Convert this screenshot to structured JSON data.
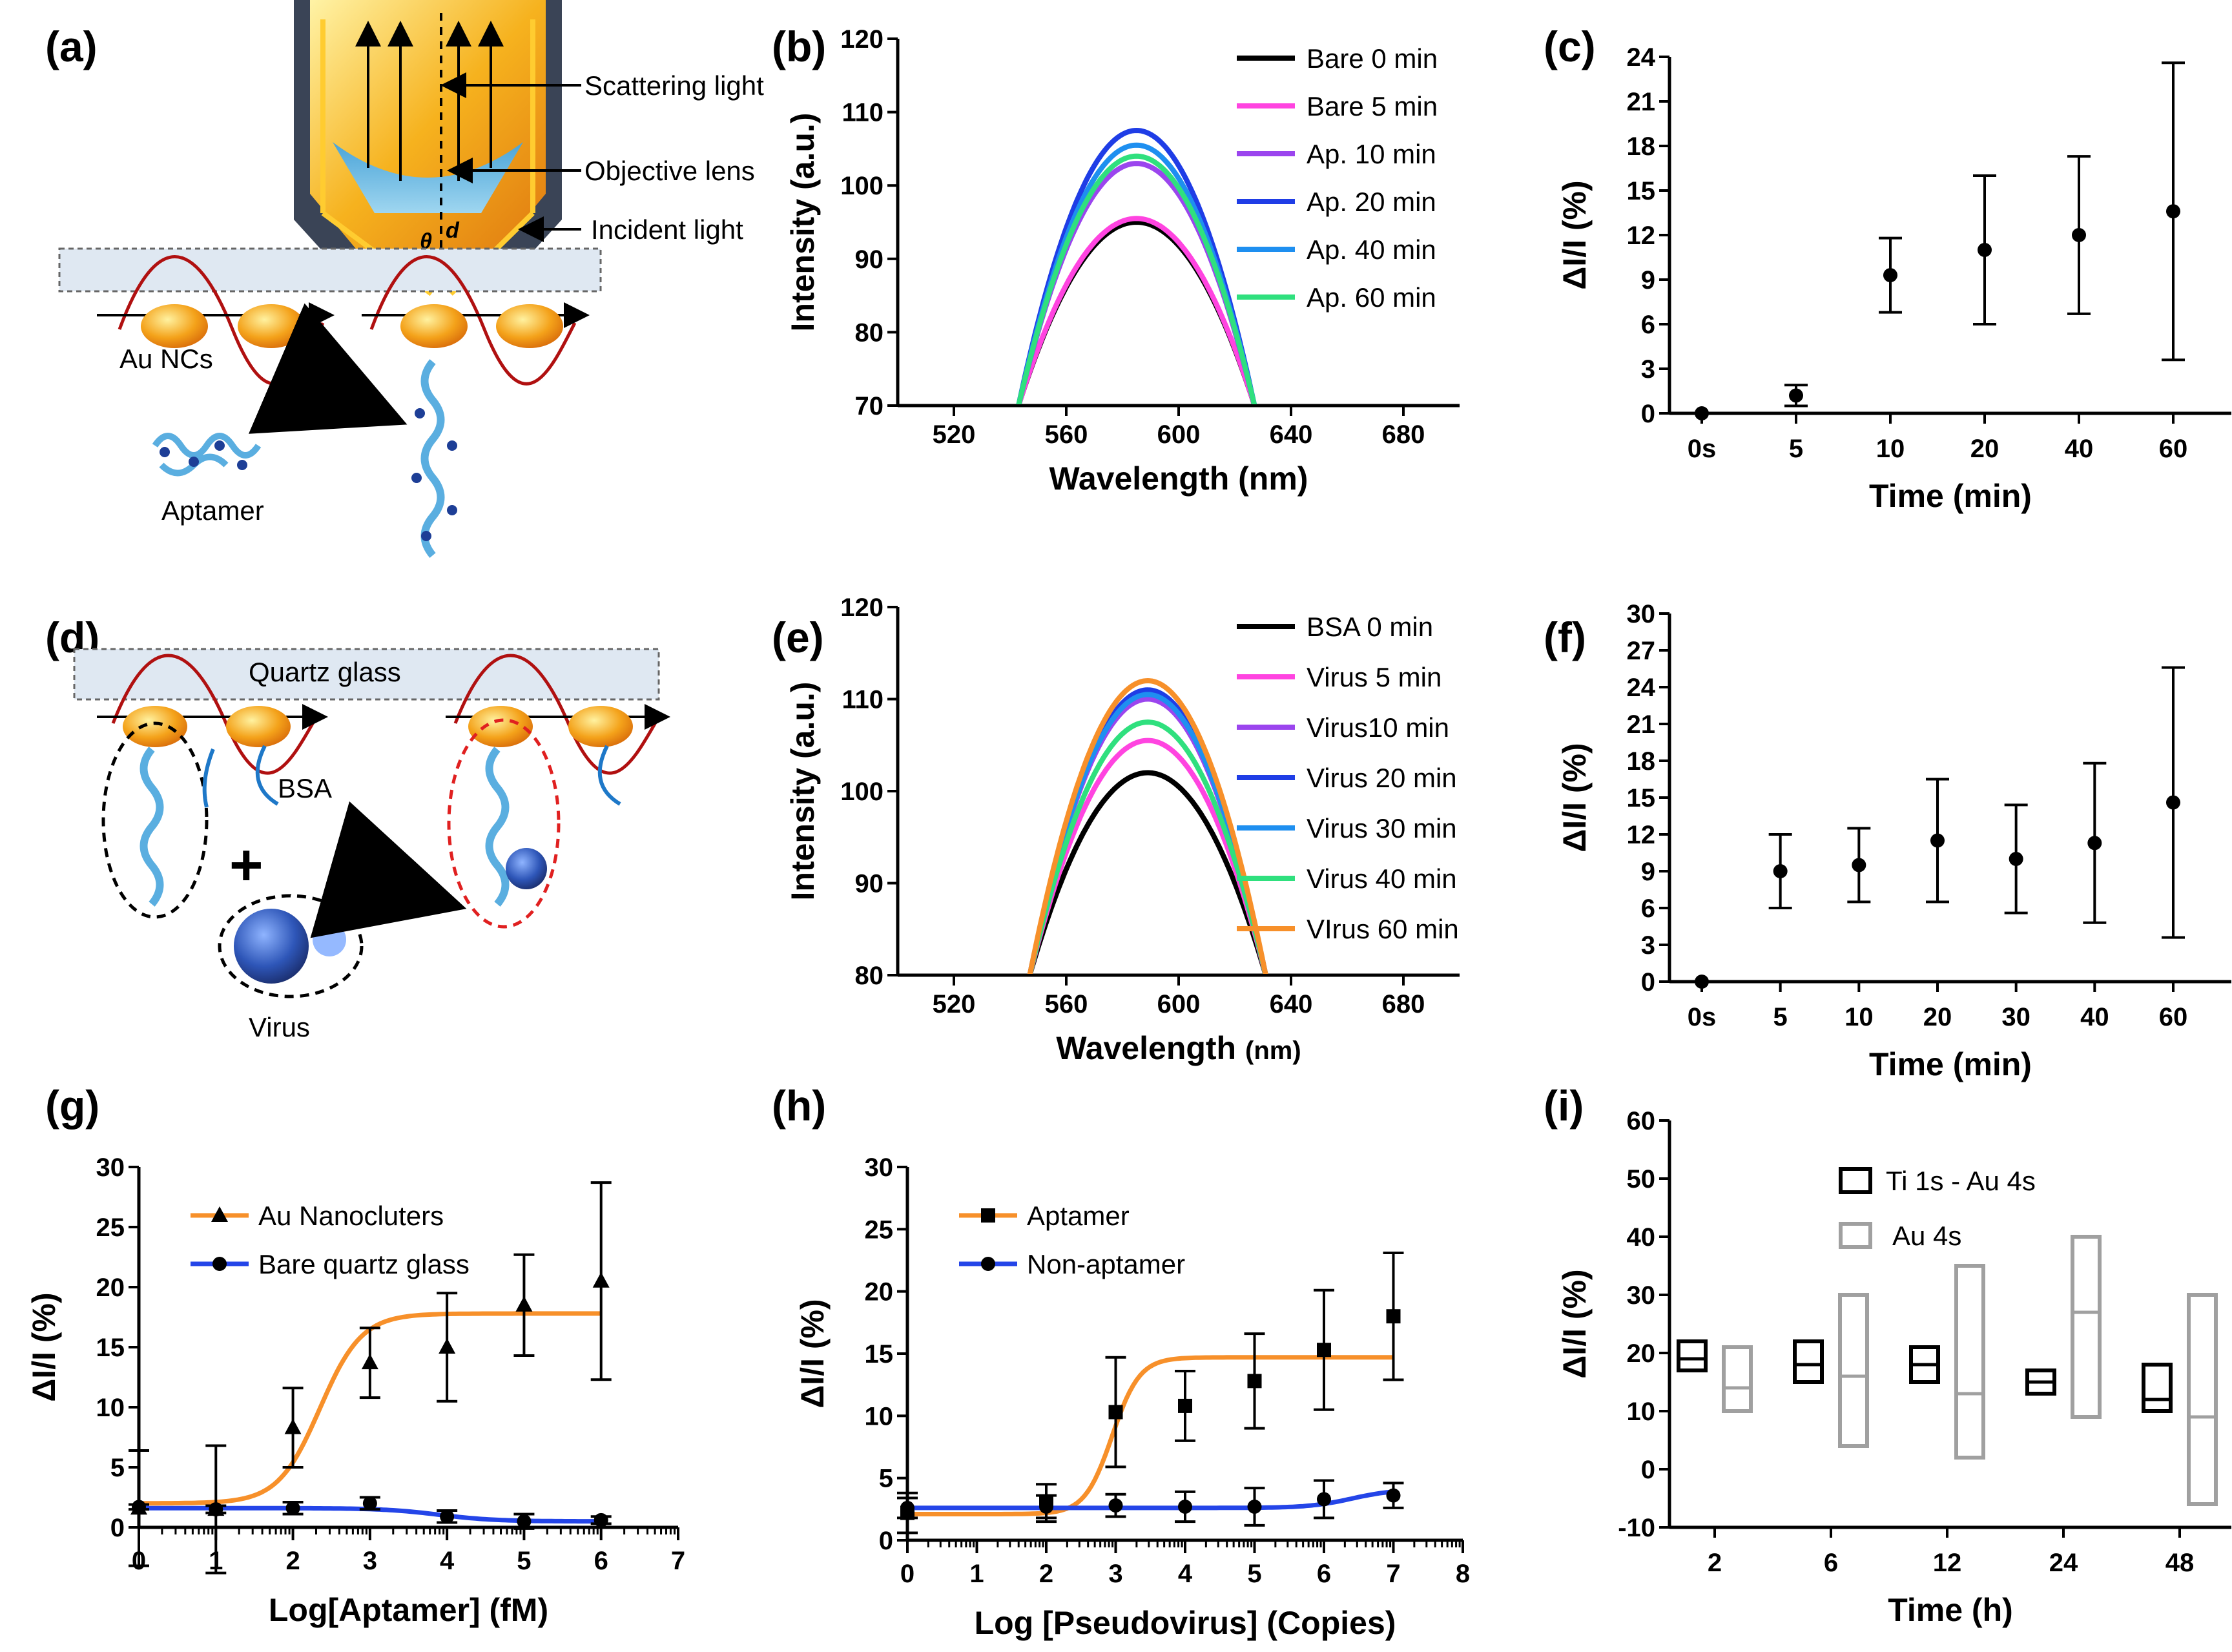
{
  "colors": {
    "black": "#000000",
    "magenta": "#ff44e0",
    "purple": "#9b45ee",
    "blue": "#1f3de6",
    "sky": "#1e8ff0",
    "green": "#2fe07e",
    "orange": "#f7902a",
    "lineblue": "#2445e8",
    "gray": "#a0a0a0",
    "red": "#e02020"
  },
  "schematics": {
    "a": {
      "label": "(a)",
      "annotations": [
        "Scattering light",
        "Objective lens",
        "Incident light",
        "Au NCs",
        "Aptamer"
      ],
      "symbols": [
        "θ",
        "d"
      ]
    },
    "d": {
      "label": "(d)",
      "annotations": [
        "Quartz glass",
        "BSA",
        "Virus",
        "+"
      ]
    }
  },
  "chart_data": [
    {
      "id": "b",
      "panel_label": "(b)",
      "type": "line",
      "xlabel": "Wavelength (nm)",
      "ylabel": "Intensity (a.u.)",
      "xlim": [
        500,
        700
      ],
      "ylim": [
        70,
        120
      ],
      "xticks": [
        520,
        560,
        600,
        640,
        680
      ],
      "yticks": [
        70,
        80,
        90,
        100,
        110,
        120
      ],
      "peak_x": 585,
      "half_width": 42,
      "series": [
        {
          "name": "Bare 0 min",
          "peak": 95,
          "color": "black"
        },
        {
          "name": "Bare 5 min",
          "peak": 95.5,
          "color": "magenta"
        },
        {
          "name": "Ap.  10 min",
          "peak": 103,
          "color": "purple"
        },
        {
          "name": "Ap.  20 min",
          "peak": 107.5,
          "color": "blue"
        },
        {
          "name": "Ap.  40 min",
          "peak": 105.5,
          "color": "sky"
        },
        {
          "name": "Ap.  60 min",
          "peak": 104,
          "color": "green"
        }
      ]
    },
    {
      "id": "c",
      "panel_label": "(c)",
      "type": "scatter",
      "xlabel": "Time  (min)",
      "ylabel": "ΔI/I (%)",
      "ylim": [
        0,
        24
      ],
      "yticks": [
        0,
        3,
        6,
        9,
        12,
        15,
        18,
        21,
        24
      ],
      "categories": [
        "0s",
        "5",
        "10",
        "20",
        "40",
        "60"
      ],
      "values": [
        0,
        1.2,
        9.3,
        11.0,
        12.0,
        13.6
      ],
      "errors": [
        0,
        0.7,
        2.5,
        5.0,
        5.3,
        10.0
      ]
    },
    {
      "id": "e",
      "panel_label": "(e)",
      "type": "line",
      "xlabel": "Wavelength (nm)",
      "xlabel_main": "Wavelength",
      "xlabel_unit": "(nm)",
      "ylabel": "Intensity (a.u.)",
      "xlim": [
        500,
        700
      ],
      "ylim": [
        80,
        120
      ],
      "xticks": [
        520,
        560,
        600,
        640,
        680
      ],
      "yticks": [
        80,
        90,
        100,
        110,
        120
      ],
      "peak_x": 589,
      "half_width": 42,
      "series": [
        {
          "name": "BSA 0 min",
          "peak": 102,
          "color": "black"
        },
        {
          "name": "Virus 5 min",
          "peak": 105.5,
          "color": "magenta"
        },
        {
          "name": "Virus10 min",
          "peak": 110,
          "color": "purple"
        },
        {
          "name": "Virus 20 min",
          "peak": 111,
          "color": "blue"
        },
        {
          "name": "Virus 30 min",
          "peak": 110.5,
          "color": "sky"
        },
        {
          "name": "Virus 40 min",
          "peak": 107.5,
          "color": "green"
        },
        {
          "name": "VIrus 60 min",
          "peak": 112,
          "color": "orange"
        }
      ]
    },
    {
      "id": "f",
      "panel_label": "(f)",
      "type": "scatter",
      "xlabel": "Time (min)",
      "ylabel": "ΔI/I (%)",
      "ylim": [
        0,
        30
      ],
      "yticks": [
        0,
        3,
        6,
        9,
        12,
        15,
        18,
        21,
        24,
        27,
        30
      ],
      "categories": [
        "0s",
        "5",
        "10",
        "20",
        "30",
        "40",
        "60"
      ],
      "values": [
        0,
        9.0,
        9.5,
        11.5,
        10.0,
        11.3,
        14.6
      ],
      "errors": [
        0,
        3.0,
        3.0,
        5.0,
        4.4,
        6.5,
        11.0
      ]
    },
    {
      "id": "g",
      "panel_label": "(g)",
      "type": "scatter",
      "xlabel": "Log[Aptamer] (fM)",
      "ylabel": "ΔI/I (%)",
      "xlim": [
        0,
        7
      ],
      "ylim": [
        0,
        30
      ],
      "xticks": [
        0,
        1,
        2,
        3,
        4,
        5,
        6,
        7
      ],
      "yticks": [
        0,
        5,
        10,
        15,
        20,
        25,
        30
      ],
      "series": [
        {
          "name": "Au Nanocluters",
          "color": "orange",
          "marker": "triangle",
          "x": [
            0,
            1,
            2,
            3,
            4,
            5,
            6
          ],
          "y": [
            1.6,
            1.5,
            8.3,
            13.7,
            15.0,
            18.5,
            20.5
          ],
          "err": [
            4.8,
            5.3,
            3.3,
            2.9,
            4.5,
            4.2,
            8.2
          ],
          "fit": {
            "bottom": 2.0,
            "top": 17.8,
            "x50": 2.35,
            "slope": 1.6
          }
        },
        {
          "name": "Bare quartz glass",
          "color": "lineblue",
          "marker": "circle",
          "x": [
            0,
            1,
            2,
            3,
            4,
            5,
            6
          ],
          "y": [
            1.7,
            1.5,
            1.6,
            2.0,
            0.9,
            0.5,
            0.6
          ],
          "err": [
            0.2,
            0.3,
            0.5,
            0.5,
            0.5,
            0.6,
            0.3
          ],
          "fit": {
            "bottom": 1.6,
            "top": 0.5,
            "x50": 3.9,
            "slope": 1.2
          }
        }
      ]
    },
    {
      "id": "h",
      "panel_label": "(h)",
      "type": "scatter",
      "xlabel": "Log [Pseudovirus] (Copies)",
      "ylabel": "ΔI/I (%)",
      "xlim": [
        0,
        8
      ],
      "ylim": [
        0,
        30
      ],
      "xticks": [
        0,
        1,
        2,
        3,
        4,
        5,
        6,
        7,
        8
      ],
      "yticks": [
        0,
        5,
        10,
        15,
        20,
        25,
        30
      ],
      "series": [
        {
          "name": "Aptamer",
          "color": "orange",
          "marker": "square",
          "x": [
            0,
            2,
            3,
            4,
            5,
            6,
            7
          ],
          "y": [
            2.2,
            3.0,
            10.3,
            10.8,
            12.8,
            15.3,
            18.0
          ],
          "err": [
            1.6,
            1.5,
            4.4,
            2.8,
            3.8,
            4.8,
            5.1
          ],
          "fit": {
            "bottom": 2.1,
            "top": 14.7,
            "x50": 2.95,
            "slope": 2.2
          }
        },
        {
          "name": "Non-aptamer",
          "color": "lineblue",
          "marker": "circle",
          "x": [
            0,
            2,
            3,
            4,
            5,
            6,
            7
          ],
          "y": [
            2.6,
            2.7,
            2.8,
            2.7,
            2.7,
            3.3,
            3.6
          ],
          "err": [
            0.8,
            0.9,
            0.9,
            1.2,
            1.5,
            1.5,
            1.0
          ],
          "fit": {
            "bottom": 2.6,
            "top": 4.1,
            "x50": 6.4,
            "slope": 1.4
          }
        }
      ]
    },
    {
      "id": "i",
      "panel_label": "(i)",
      "type": "box",
      "xlabel": "Time (h)",
      "ylabel": "ΔI/I (%)",
      "ylim": [
        -10,
        60
      ],
      "yticks": [
        -10,
        0,
        10,
        20,
        30,
        40,
        50,
        60
      ],
      "categories": [
        "2",
        "6",
        "12",
        "24",
        "48"
      ],
      "series": [
        {
          "name": "Ti 1s - Au 4s",
          "color": "black",
          "boxes": [
            [
              17,
              22,
              19
            ],
            [
              15,
              22,
              18
            ],
            [
              15,
              21,
              18
            ],
            [
              13,
              17,
              15
            ],
            [
              10,
              18,
              12
            ]
          ]
        },
        {
          "name": "Au 4s",
          "color": "gray",
          "boxes": [
            [
              10,
              21,
              14
            ],
            [
              4,
              30,
              16
            ],
            [
              2,
              35,
              13
            ],
            [
              9,
              40,
              27
            ],
            [
              -6,
              30,
              9
            ]
          ]
        }
      ]
    }
  ]
}
